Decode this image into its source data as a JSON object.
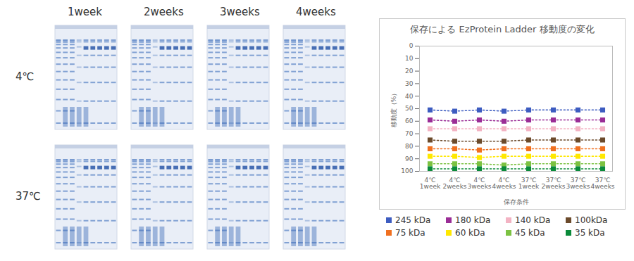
{
  "gel_images": {
    "column_labels": [
      "1week",
      "2weeks",
      "3weeks",
      "4weeks"
    ],
    "row_labels": [
      "4℃",
      "37℃"
    ]
  },
  "chart_data": {
    "type": "line",
    "title": "保存による EzProtein Ladder 移動度の変化",
    "x_label": "保存条件",
    "y_label": "移動度（%）",
    "categories": [
      "4℃\n1week",
      "4℃\n2weeks",
      "4℃\n3weeks",
      "4℃\n4weeks",
      "37℃\n1week",
      "37℃\n2weeks",
      "37℃\n3weeks",
      "37℃\n4weeks"
    ],
    "ylim": [
      0,
      100
    ],
    "yticks": [
      0,
      10,
      20,
      30,
      40,
      50,
      60,
      70,
      80,
      90,
      100
    ],
    "y_reversed": true,
    "grid": false,
    "legend": "bottom",
    "marker": "square",
    "line_style": "dotted",
    "series": [
      {
        "name": "245 kDa",
        "color": "#3d5cc0",
        "values": [
          51,
          52,
          51,
          52,
          51,
          51,
          51,
          51
        ]
      },
      {
        "name": "180 kDa",
        "color": "#9a2d96",
        "values": [
          59,
          60,
          59,
          60,
          59,
          59,
          59,
          59
        ]
      },
      {
        "name": "140 kDa",
        "color": "#f3b3c3",
        "values": [
          66,
          66,
          66,
          66,
          66,
          66,
          66,
          66
        ]
      },
      {
        "name": "100kDa",
        "color": "#6b4a2b",
        "values": [
          75,
          76,
          76,
          76,
          75,
          75,
          75,
          75
        ]
      },
      {
        "name": "75 kDa",
        "color": "#f07020",
        "values": [
          82,
          82,
          83,
          82,
          82,
          82,
          82,
          82
        ]
      },
      {
        "name": "60 kDa",
        "color": "#ffe800",
        "values": [
          88,
          88,
          89,
          88,
          88,
          88,
          88,
          88
        ]
      },
      {
        "name": "45 kDa",
        "color": "#7cc242",
        "values": [
          94,
          94,
          94,
          95,
          94,
          94,
          94,
          94
        ]
      },
      {
        "name": "35 kDa",
        "color": "#0a8a3a",
        "values": [
          98,
          98,
          98,
          98,
          98,
          98,
          98,
          98
        ]
      }
    ]
  }
}
